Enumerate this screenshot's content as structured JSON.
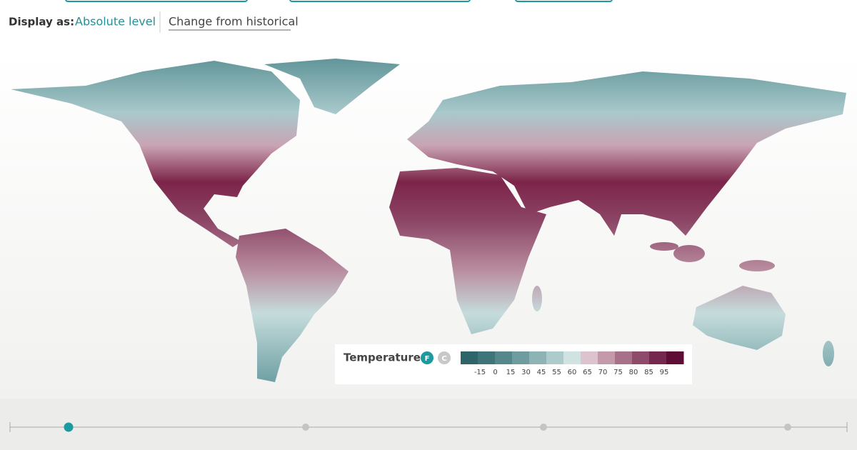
{
  "display": {
    "label": "Display as:",
    "options": [
      "Absolute level",
      "Change from historical"
    ]
  },
  "legend": {
    "title": "Temperature",
    "units": [
      "F",
      "C"
    ],
    "colors": [
      "#2f6469",
      "#3f7479",
      "#55878b",
      "#6f9c9f",
      "#8db3b5",
      "#aecbcc",
      "#d0e2e2",
      "#dcc3cd",
      "#c49aab",
      "#a8718a",
      "#8e4b6a",
      "#75284d",
      "#5e0d35"
    ],
    "ticks": [
      -15,
      0,
      15,
      30,
      45,
      55,
      60,
      65,
      70,
      75,
      80,
      85,
      95
    ]
  }
}
